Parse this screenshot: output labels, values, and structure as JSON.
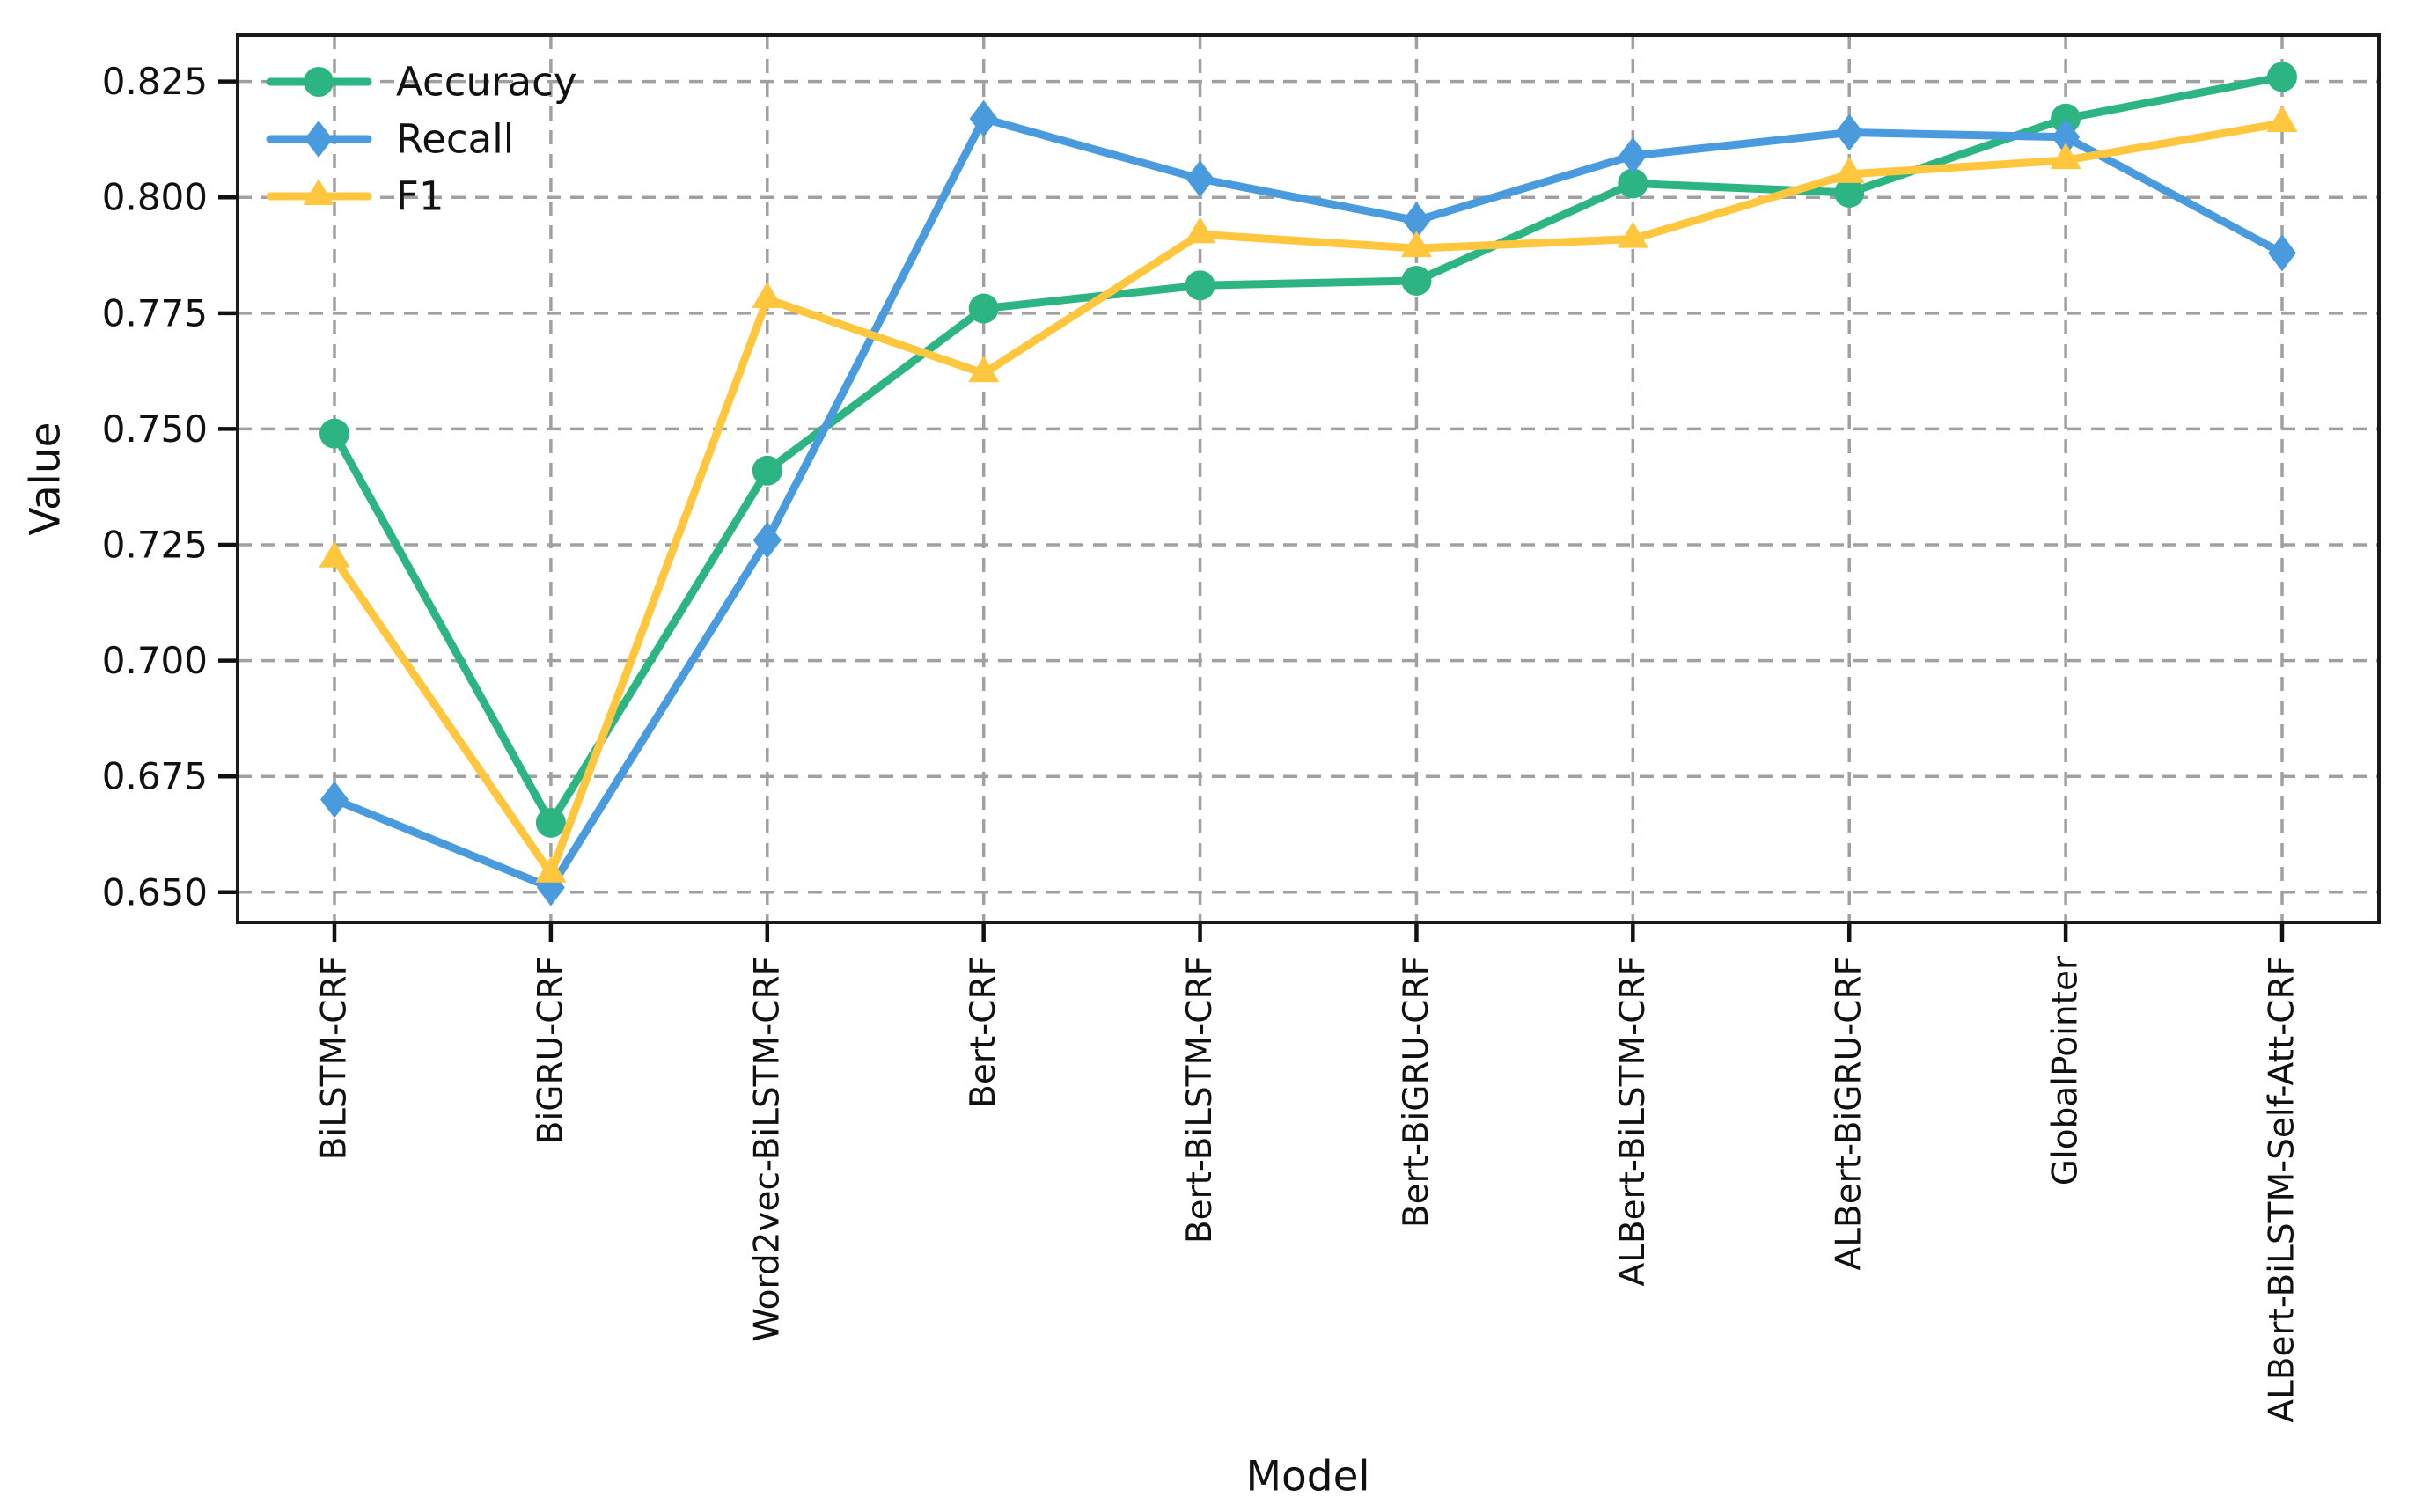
{
  "figure": {
    "background": "#ffffff"
  },
  "chart_data": {
    "type": "line",
    "title": "",
    "xlabel": "Model",
    "ylabel": "Value",
    "categories": [
      "BiLSTM-CRF",
      "BiGRU-CRF",
      "Word2vec-BiLSTM-CRF",
      "Bert-CRF",
      "Bert-BiLSTM-CRF",
      "Bert-BiGRU-CRF",
      "ALBert-BiLSTM-CRF",
      "ALBert-BiGRU-CRF",
      "GlobalPointer",
      "ALBert-BiLSTM-Self-Att-CRF"
    ],
    "series": [
      {
        "name": "Accuracy",
        "marker": "circle",
        "color": "#2cb583",
        "values": [
          0.749,
          0.665,
          0.741,
          0.776,
          0.781,
          0.782,
          0.803,
          0.801,
          0.817,
          0.826
        ]
      },
      {
        "name": "Recall",
        "marker": "diamond",
        "color": "#4a9bde",
        "values": [
          0.67,
          0.651,
          0.726,
          0.817,
          0.804,
          0.795,
          0.809,
          0.814,
          0.813,
          0.788
        ]
      },
      {
        "name": "F1",
        "marker": "triangle",
        "color": "#ffc63e",
        "values": [
          0.722,
          0.654,
          0.778,
          0.762,
          0.792,
          0.789,
          0.791,
          0.805,
          0.808,
          0.816
        ]
      }
    ],
    "y_ticks": [
      "0.650",
      "0.675",
      "0.700",
      "0.725",
      "0.750",
      "0.775",
      "0.800",
      "0.825"
    ],
    "ylim": [
      0.6435,
      0.835
    ],
    "grid": true,
    "grid_style": "dashed",
    "grid_color": "#a0a0a0",
    "legend_position": "upper left",
    "legend_entries": [
      "Accuracy",
      "Recall",
      "F1"
    ]
  }
}
